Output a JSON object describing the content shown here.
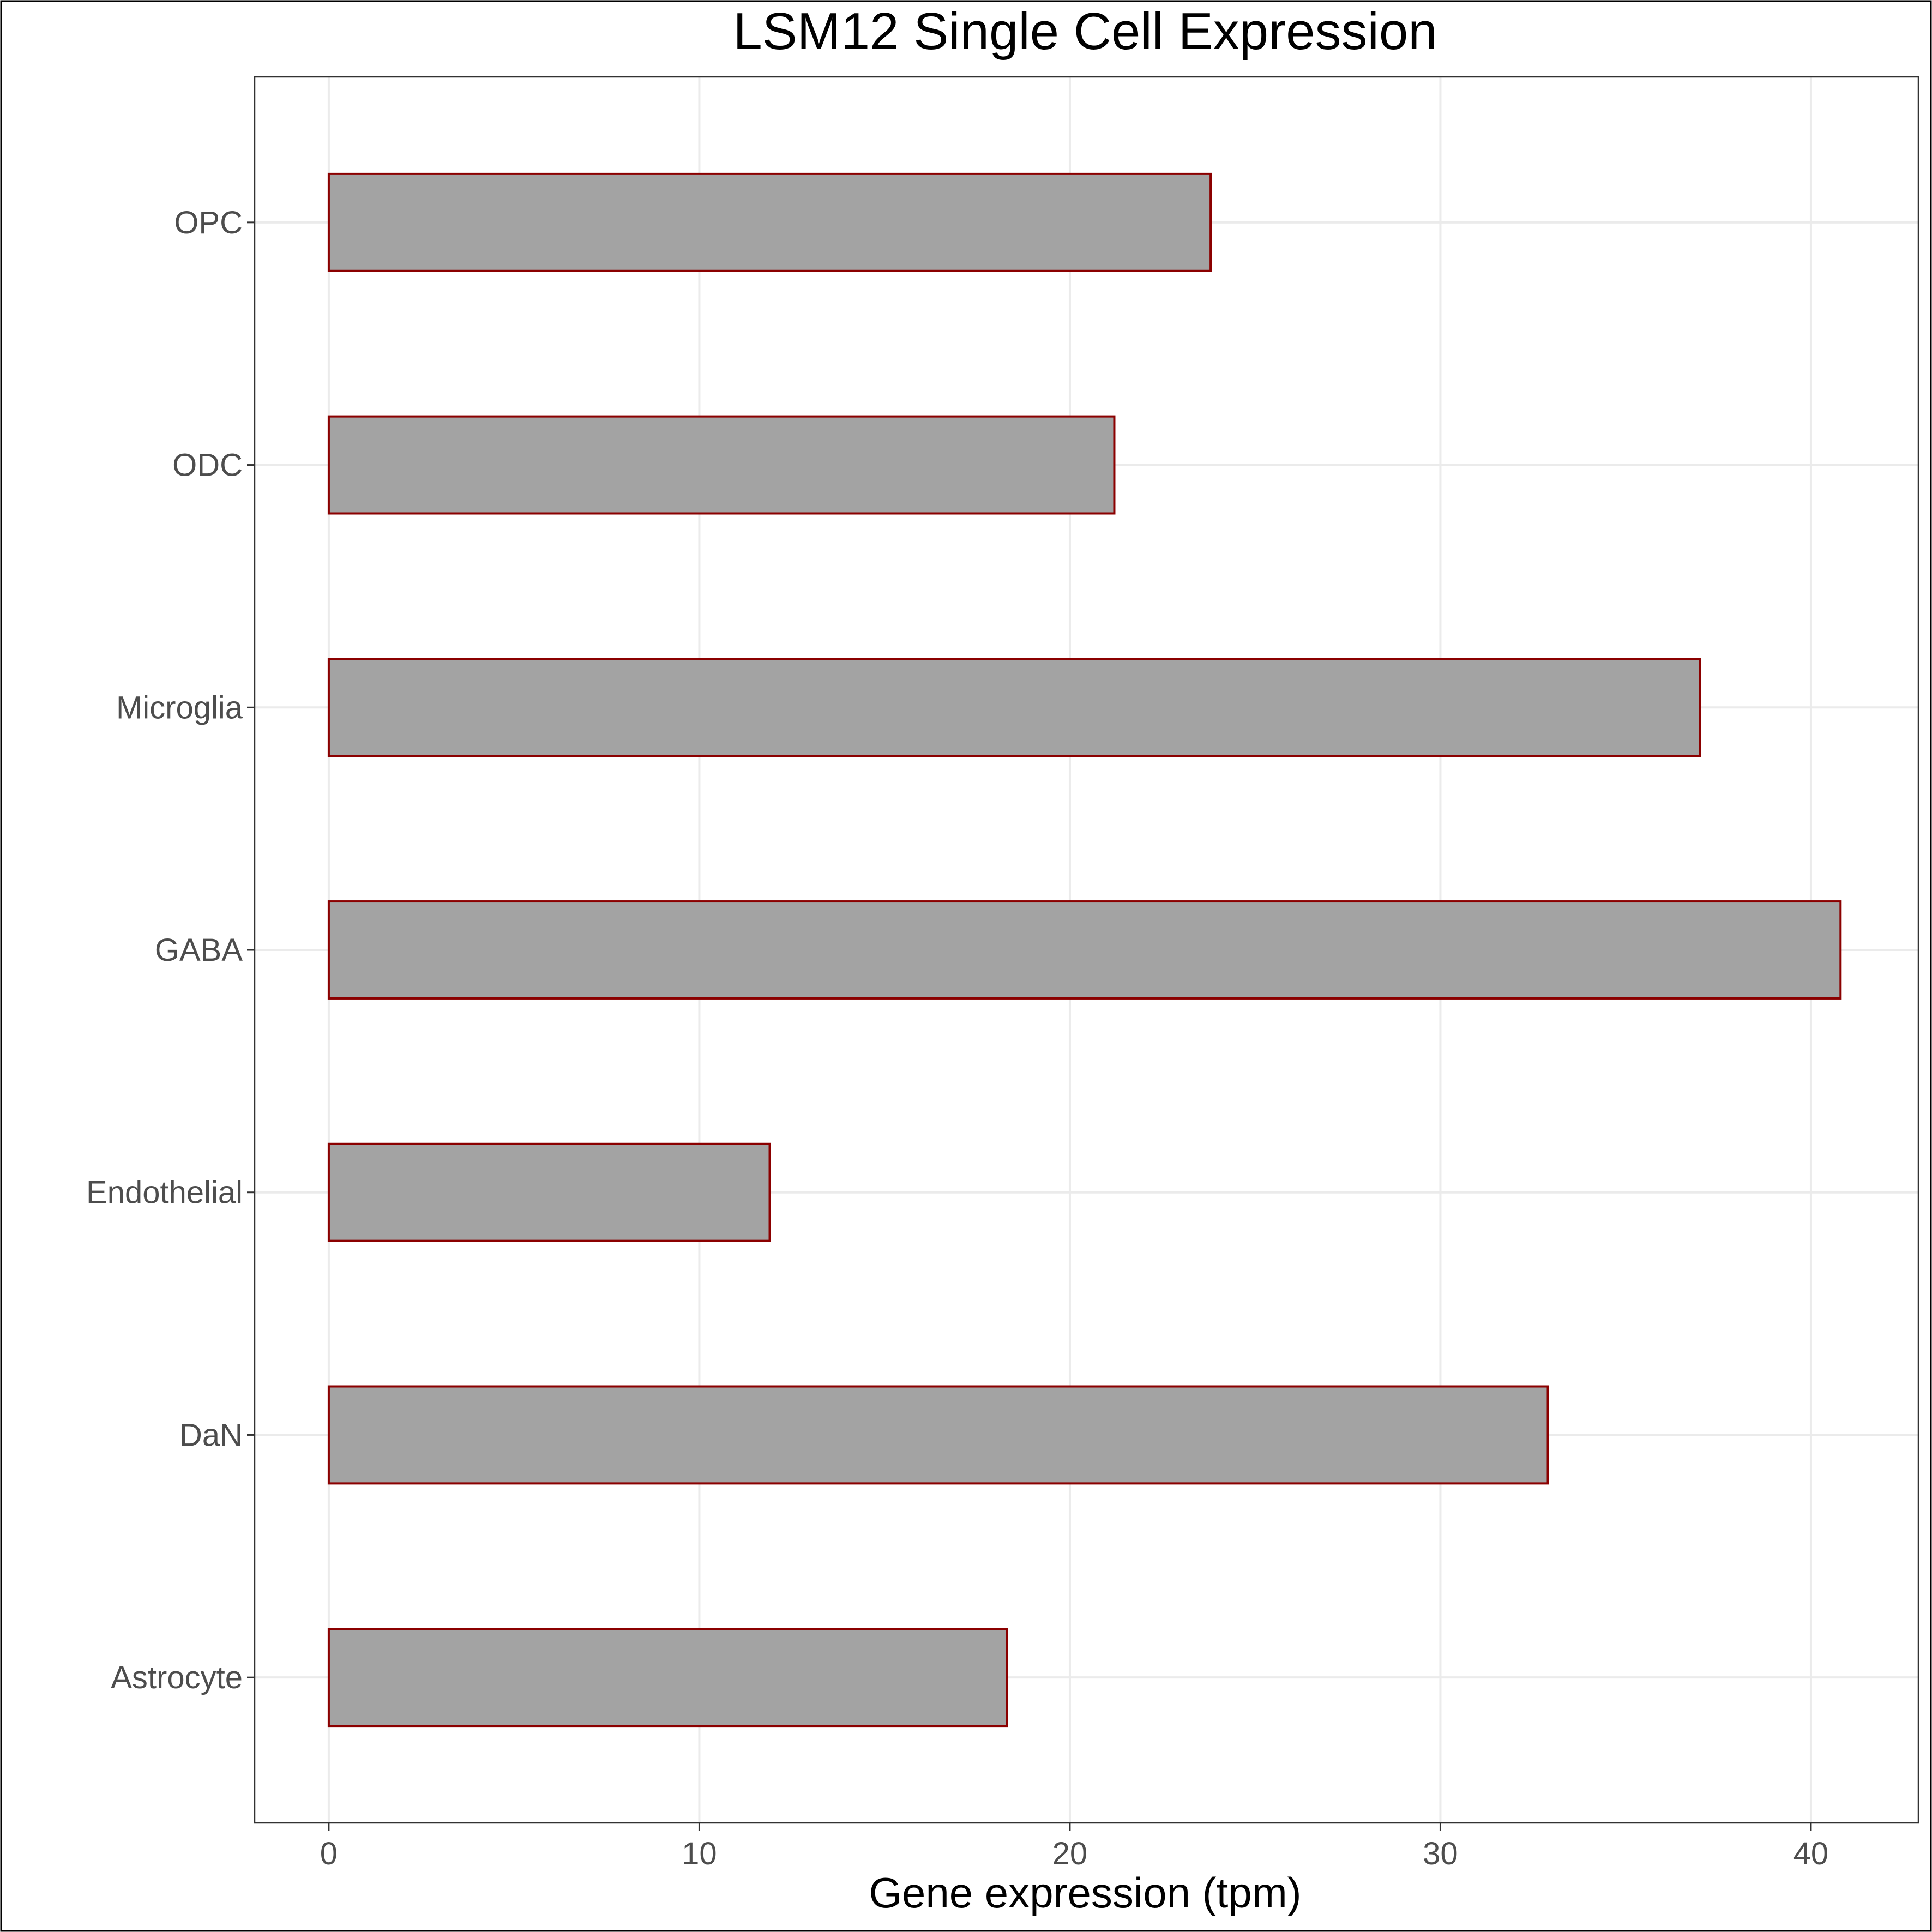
{
  "chart_data": {
    "type": "bar",
    "orientation": "horizontal",
    "title": "LSM12 Single Cell Expression",
    "xlabel": "Gene expression (tpm)",
    "ylabel": "",
    "categories": [
      "Astrocyte",
      "DaN",
      "Endothelial",
      "GABA",
      "Microglia",
      "ODC",
      "OPC"
    ],
    "values": [
      18.3,
      32.9,
      11.9,
      40.8,
      37.0,
      21.2,
      23.8
    ],
    "xlim": [
      -2,
      42.9
    ],
    "xticks": [
      0,
      10,
      20,
      30,
      40
    ],
    "grid": true,
    "legend": "none",
    "colors": {
      "bar_fill": "#a3a3a3",
      "bar_outline": "#8b0000",
      "grid": "#ebebeb",
      "panel_border": "#333333",
      "frame": "#000000",
      "tick_text": "#4d4d4d"
    }
  }
}
